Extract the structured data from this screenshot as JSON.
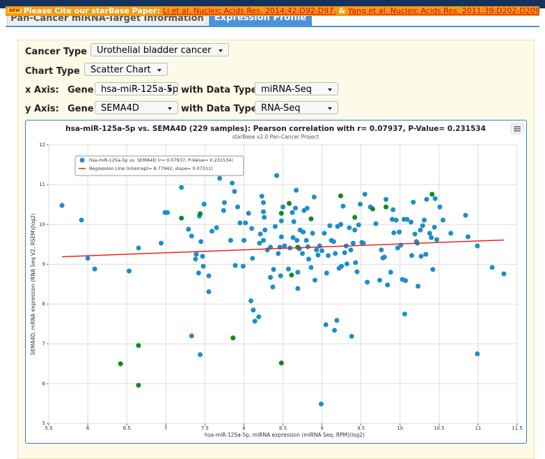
{
  "header": {
    "notice": "Please Cite our starBase Paper:",
    "link1": "Li et al. Nucleic Acids Res. 2014;42:D92-D97.",
    "separator": "&",
    "link2": "Yang et al. Nucleic Acids Res. 2011;39:D202-D209.",
    "badge": "NEW"
  },
  "tabs": [
    "Pan-Cancer miRNA-Target Information",
    "Expression Profile"
  ],
  "form": {
    "cancer_type_label": "Cancer Type",
    "cancer_type": "Urothelial bladder cancer",
    "chart_type_label": "Chart Type",
    "chart_type": "Scatter Chart",
    "x_axis_label": "x Axis:",
    "y_axis_label": "y Axis:",
    "gene_label": "Gene",
    "data_type_label": "with Data Type",
    "x_gene": "hsa-miR-125a-5p",
    "x_data_type": "miRNA-Seq",
    "y_gene": "SEMA4D",
    "y_data_type": "RNA-Seq"
  },
  "chart_data": {
    "type": "scatter",
    "title": "hsa-miR-125a-5p vs. SEMA4D (229 samples): Pearson correlation with r= 0.07937, P-Value= 0.231534",
    "subtitle": "starBase v2.0 Pan-Cancer Project",
    "x_label": "hsa-miR-125a-5p, miRNA expression (miRNA Seq, RPM)(log2)",
    "y_label": "SEMA4D, mRNA expression (RNA Seq V2, RSEM)(log2)",
    "xlim": [
      5.5,
      11.5
    ],
    "xticks": [
      5.5,
      6,
      6.5,
      7,
      7.5,
      8,
      8.5,
      9,
      9.5,
      10,
      10.5,
      11,
      11.5
    ],
    "ylim": [
      5,
      12
    ],
    "yticks": [
      5,
      6,
      7,
      8,
      9,
      10,
      11,
      12
    ],
    "grid": true,
    "series": [
      {
        "name": "hsa-miR-125a-5p vs. SEMA4D (r= 0.07937, P-Value= 0.231534)",
        "color": "#1b8fc9",
        "x": [
          5.67,
          5.92,
          6.0,
          6.09,
          6.53,
          6.65,
          6.94,
          6.99,
          7.02,
          7.2,
          7.29,
          7.33,
          7.38,
          7.39,
          7.43,
          7.45,
          7.47,
          7.42,
          7.48,
          7.33,
          7.44,
          7.49,
          7.55,
          7.55,
          7.59,
          7.65,
          7.69,
          7.74,
          7.75,
          7.83,
          7.85,
          7.88,
          7.89,
          7.92,
          7.95,
          7.99,
          8.0,
          8.02,
          8.06,
          8.09,
          8.1,
          8.11,
          8.12,
          8.14,
          8.19,
          8.2,
          8.21,
          8.23,
          8.25,
          8.25,
          8.25,
          8.26,
          8.27,
          8.3,
          8.34,
          8.34,
          8.37,
          8.38,
          8.4,
          8.42,
          8.44,
          8.46,
          8.47,
          8.48,
          8.48,
          8.5,
          8.52,
          8.57,
          8.59,
          8.62,
          8.63,
          8.64,
          8.66,
          8.67,
          8.68,
          8.69,
          8.69,
          8.71,
          8.72,
          8.75,
          8.76,
          8.77,
          8.8,
          8.81,
          8.82,
          8.83,
          8.86,
          8.88,
          8.9,
          8.91,
          8.93,
          8.95,
          8.97,
          8.99,
          9.0,
          9.03,
          9.05,
          9.06,
          9.08,
          9.1,
          9.12,
          9.15,
          9.16,
          9.17,
          9.19,
          9.2,
          9.22,
          9.24,
          9.25,
          9.27,
          9.29,
          9.31,
          9.32,
          9.35,
          9.37,
          9.38,
          9.4,
          9.42,
          9.43,
          9.45,
          9.47,
          9.49,
          9.51,
          9.53,
          9.55,
          9.58,
          9.62,
          9.69,
          9.74,
          9.76,
          9.78,
          9.8,
          9.82,
          9.84,
          9.88,
          9.9,
          9.91,
          9.92,
          9.95,
          9.97,
          9.99,
          10.01,
          10.03,
          10.05,
          10.06,
          10.07,
          10.09,
          10.14,
          10.15,
          10.17,
          10.19,
          10.21,
          10.22,
          10.23,
          10.26,
          10.27,
          10.29,
          10.31,
          10.33,
          10.34,
          10.38,
          10.4,
          10.42,
          10.44,
          10.45,
          10.47,
          10.55,
          10.65,
          10.84,
          10.87,
          10.99,
          10.99,
          11.18,
          11.33,
          10.51
        ],
        "values": [
          10.48,
          10.11,
          9.15,
          8.88,
          8.83,
          9.41,
          9.53,
          10.3,
          10.3,
          10.93,
          9.88,
          9.71,
          9.13,
          9.25,
          10.21,
          9.57,
          9.2,
          8.78,
          8.95,
          7.2,
          6.73,
          10.51,
          8.71,
          8.31,
          9.83,
          9.92,
          11.16,
          10.35,
          10.55,
          9.6,
          11.04,
          10.83,
          8.97,
          10.44,
          10.04,
          8.95,
          9.6,
          10.04,
          10.28,
          8.08,
          9.9,
          9.15,
          7.85,
          7.57,
          7.68,
          9.53,
          9.76,
          10.71,
          9.6,
          10.55,
          10.32,
          10.18,
          9.86,
          9.36,
          8.67,
          9.43,
          8.43,
          8.87,
          9.95,
          11.23,
          9.27,
          9.43,
          8.71,
          9.69,
          10.09,
          10.44,
          9.46,
          8.88,
          9.41,
          10.3,
          9.67,
          10.07,
          10.41,
          10.86,
          9.6,
          8.8,
          8.39,
          9.39,
          9.86,
          9.27,
          9.81,
          10.35,
          9.6,
          10.41,
          9.44,
          9.13,
          8.92,
          9.78,
          10.69,
          8.6,
          9.36,
          9.23,
          9.46,
          5.49,
          9.34,
          9.78,
          7.48,
          8.78,
          9.22,
          9.97,
          9.6,
          9.57,
          7.34,
          9.27,
          7.59,
          9.95,
          8.9,
          10.0,
          8.95,
          10.46,
          9.29,
          9.46,
          9.01,
          9.92,
          9.36,
          7.19,
          9.53,
          9.86,
          9.04,
          8.81,
          9.99,
          10.51,
          9.55,
          9.53,
          10.76,
          8.55,
          10.44,
          10.02,
          8.6,
          9.36,
          9.16,
          9.18,
          10.63,
          8.48,
          8.8,
          10.13,
          10.37,
          9.79,
          10.11,
          9.41,
          9.81,
          9.48,
          8.62,
          10.13,
          7.75,
          8.59,
          10.13,
          10.06,
          9.22,
          10.56,
          9.76,
          9.57,
          9.53,
          8.45,
          9.86,
          9.2,
          9.97,
          10.11,
          9.25,
          10.63,
          9.78,
          9.67,
          8.87,
          9.93,
          10.65,
          9.62,
          10.11,
          9.78,
          10.23,
          9.69,
          9.46,
          6.75,
          8.92,
          8.76,
          10.44
        ]
      },
      {
        "color": "#0f8a1a",
        "x": [
          6.65,
          6.65,
          6.42,
          7.2,
          7.44,
          7.86,
          8.48,
          8.48,
          8.58,
          8.61,
          8.86,
          9.24,
          9.42,
          9.65,
          9.82,
          10.41,
          8.69
        ],
        "values": [
          6.96,
          5.96,
          6.5,
          10.16,
          10.27,
          7.15,
          6.52,
          10.28,
          10.53,
          8.73,
          10.14,
          10.72,
          10.18,
          10.39,
          10.44,
          10.76,
          9.43
        ]
      },
      {
        "name": "Regression Line (intercept= 8.77942, slope= 0.07311)",
        "type": "line",
        "color": "#e8231c",
        "x": [
          5.67,
          11.33
        ],
        "values": [
          9.19,
          9.61
        ]
      }
    ]
  }
}
